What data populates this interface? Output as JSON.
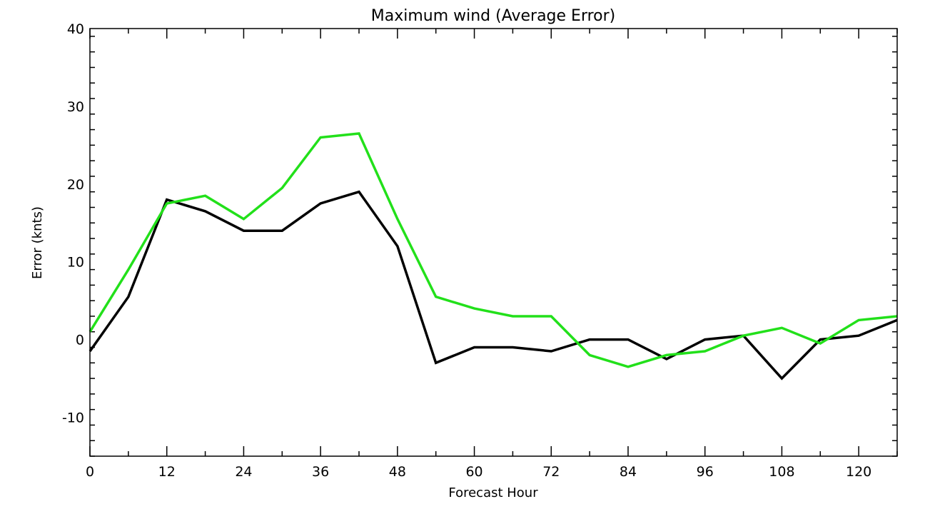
{
  "chart_data": {
    "type": "line",
    "title": "Maximum wind (Average Error)",
    "xlabel": "Forecast Hour",
    "ylabel": "Error (knts)",
    "xlim": [
      0,
      126
    ],
    "ylim": [
      -15,
      40
    ],
    "xticks": [
      0,
      12,
      24,
      36,
      48,
      60,
      72,
      84,
      96,
      108,
      120
    ],
    "yticks": [
      -10,
      0,
      10,
      20,
      30,
      40
    ],
    "grid": false,
    "legend": "none",
    "x": [
      0,
      6,
      12,
      18,
      24,
      30,
      36,
      42,
      48,
      54,
      60,
      66,
      72,
      78,
      84,
      90,
      96,
      102,
      108,
      114,
      120,
      126
    ],
    "series": [
      {
        "color": "#000000",
        "values": [
          -1.5,
          5.5,
          18,
          16.5,
          14,
          14,
          17.5,
          19,
          12,
          -3,
          -1,
          -1,
          -1.5,
          0,
          0,
          -2.5,
          0,
          0.5,
          -5,
          0,
          0.5,
          2.5
        ]
      },
      {
        "color": "#22e01a",
        "values": [
          1,
          9,
          17.5,
          18.5,
          15.5,
          19.5,
          26,
          26.5,
          15.5,
          5.5,
          4,
          3,
          3,
          -2,
          -3.5,
          -2,
          -1.5,
          0.5,
          1.5,
          -0.5,
          2.5,
          3
        ]
      }
    ]
  }
}
